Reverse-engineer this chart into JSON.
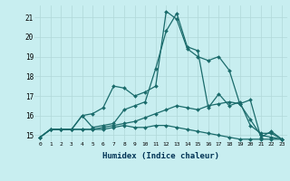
{
  "xlabel": "Humidex (Indice chaleur)",
  "ylabel": "",
  "background_color": "#c8eef0",
  "grid_color": "#b0d8d8",
  "line_color": "#1a6b6b",
  "xlim": [
    -0.5,
    23.5
  ],
  "ylim": [
    14.7,
    21.6
  ],
  "yticks": [
    15,
    16,
    17,
    18,
    19,
    20,
    21
  ],
  "xticks": [
    0,
    1,
    2,
    3,
    4,
    5,
    6,
    7,
    8,
    9,
    10,
    11,
    12,
    13,
    14,
    15,
    16,
    17,
    18,
    19,
    20,
    21,
    22,
    23
  ],
  "lines": [
    [
      14.9,
      15.3,
      15.3,
      15.3,
      16.0,
      16.1,
      16.4,
      17.5,
      17.4,
      17.0,
      17.2,
      17.5,
      21.3,
      20.9,
      19.4,
      19.0,
      18.8,
      19.0,
      18.3,
      16.6,
      16.8,
      14.9,
      15.2,
      14.8
    ],
    [
      14.9,
      15.3,
      15.3,
      15.3,
      16.0,
      15.4,
      15.5,
      15.6,
      16.3,
      16.5,
      16.7,
      18.4,
      20.3,
      21.2,
      19.5,
      19.3,
      16.4,
      17.1,
      16.5,
      16.7,
      15.5,
      15.1,
      15.1,
      14.8
    ],
    [
      14.9,
      15.3,
      15.3,
      15.3,
      15.3,
      15.3,
      15.4,
      15.5,
      15.6,
      15.7,
      15.9,
      16.1,
      16.3,
      16.5,
      16.4,
      16.3,
      16.5,
      16.6,
      16.7,
      16.6,
      15.8,
      15.0,
      14.9,
      14.8
    ],
    [
      14.9,
      15.3,
      15.3,
      15.3,
      15.3,
      15.3,
      15.3,
      15.4,
      15.5,
      15.4,
      15.4,
      15.5,
      15.5,
      15.4,
      15.3,
      15.2,
      15.1,
      15.0,
      14.9,
      14.8,
      14.8,
      14.8,
      14.8,
      14.8
    ]
  ]
}
